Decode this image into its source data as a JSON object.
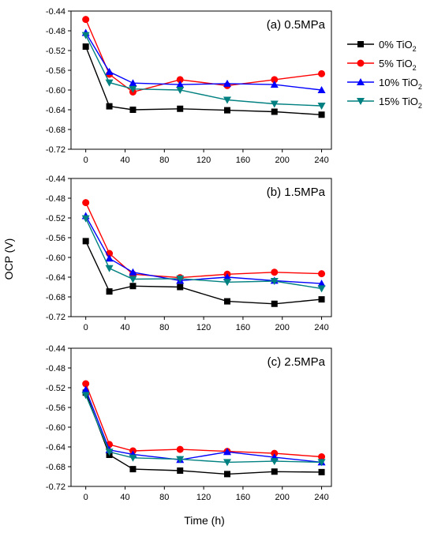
{
  "chart_data": [
    {
      "type": "line",
      "panel_label": "(a) 0.5MPa",
      "x": [
        0,
        24,
        48,
        96,
        144,
        192,
        240
      ],
      "xlim": [
        -15,
        250
      ],
      "x_ticks": [
        "0",
        "40",
        "80",
        "120",
        "160",
        "200",
        "240"
      ],
      "ylim": [
        -0.72,
        -0.44
      ],
      "y_ticks": [
        "-0.44",
        "-0.48",
        "-0.52",
        "-0.56",
        "-0.60",
        "-0.64",
        "-0.68",
        "-0.72"
      ],
      "series": [
        {
          "name": "0% TiO2",
          "values": [
            -0.512,
            -0.633,
            -0.64,
            -0.638,
            -0.641,
            -0.644,
            -0.65
          ]
        },
        {
          "name": "5% TiO2",
          "values": [
            -0.457,
            -0.568,
            -0.604,
            -0.579,
            -0.591,
            -0.579,
            -0.567
          ]
        },
        {
          "name": "10% TiO2",
          "values": [
            -0.484,
            -0.563,
            -0.586,
            -0.589,
            -0.587,
            -0.589,
            -0.6
          ]
        },
        {
          "name": "15% TiO2",
          "values": [
            -0.489,
            -0.585,
            -0.598,
            -0.6,
            -0.62,
            -0.628,
            -0.632
          ]
        }
      ]
    },
    {
      "type": "line",
      "panel_label": "(b) 1.5MPa",
      "x": [
        0,
        24,
        48,
        96,
        144,
        192,
        240
      ],
      "xlim": [
        -15,
        250
      ],
      "x_ticks": [
        "0",
        "40",
        "80",
        "120",
        "160",
        "200",
        "240"
      ],
      "ylim": [
        -0.72,
        -0.44
      ],
      "y_ticks": [
        "-0.44",
        "-0.48",
        "-0.52",
        "-0.56",
        "-0.60",
        "-0.64",
        "-0.68",
        "-0.72"
      ],
      "series": [
        {
          "name": "0% TiO2",
          "values": [
            -0.567,
            -0.669,
            -0.658,
            -0.66,
            -0.689,
            -0.694,
            -0.685
          ]
        },
        {
          "name": "5% TiO2",
          "values": [
            -0.489,
            -0.592,
            -0.634,
            -0.641,
            -0.634,
            -0.63,
            -0.633
          ]
        },
        {
          "name": "10% TiO2",
          "values": [
            -0.516,
            -0.602,
            -0.63,
            -0.647,
            -0.64,
            -0.647,
            -0.653
          ]
        },
        {
          "name": "15% TiO2",
          "values": [
            -0.521,
            -0.622,
            -0.644,
            -0.643,
            -0.65,
            -0.648,
            -0.663
          ]
        }
      ]
    },
    {
      "type": "line",
      "panel_label": "(c) 2.5MPa",
      "x": [
        0,
        24,
        48,
        96,
        144,
        192,
        240
      ],
      "xlim": [
        -15,
        250
      ],
      "x_ticks": [
        "0",
        "40",
        "80",
        "120",
        "160",
        "200",
        "240"
      ],
      "ylim": [
        -0.72,
        -0.44
      ],
      "y_ticks": [
        "-0.44",
        "-0.48",
        "-0.52",
        "-0.56",
        "-0.60",
        "-0.64",
        "-0.68",
        "-0.72"
      ],
      "series": [
        {
          "name": "0% TiO2",
          "values": [
            -0.53,
            -0.656,
            -0.685,
            -0.688,
            -0.695,
            -0.69,
            -0.691
          ]
        },
        {
          "name": "5% TiO2",
          "values": [
            -0.512,
            -0.635,
            -0.648,
            -0.645,
            -0.649,
            -0.653,
            -0.66
          ]
        },
        {
          "name": "10% TiO2",
          "values": [
            -0.524,
            -0.646,
            -0.655,
            -0.666,
            -0.65,
            -0.661,
            -0.671
          ]
        },
        {
          "name": "15% TiO2",
          "values": [
            -0.535,
            -0.65,
            -0.662,
            -0.665,
            -0.671,
            -0.669,
            -0.671
          ]
        }
      ]
    }
  ],
  "axes": {
    "ylabel": "OCP (V)",
    "xlabel": "Time (h)"
  },
  "legend": {
    "placement": "right of top panel",
    "items": [
      {
        "prefix": "0% TiO",
        "sub": "2",
        "color": "#000000",
        "marker": "square"
      },
      {
        "prefix": "5% TiO",
        "sub": "2",
        "color": "#ff0000",
        "marker": "circle"
      },
      {
        "prefix": "10% TiO",
        "sub": "2",
        "color": "#0000ff",
        "marker": "triangle-up"
      },
      {
        "prefix": "15% TiO",
        "sub": "2",
        "color": "#008080",
        "marker": "triangle-down"
      }
    ]
  },
  "colors": [
    "#000000",
    "#ff0000",
    "#0000ff",
    "#008080"
  ],
  "markers": [
    "square",
    "circle",
    "triangle-up",
    "triangle-down"
  ]
}
